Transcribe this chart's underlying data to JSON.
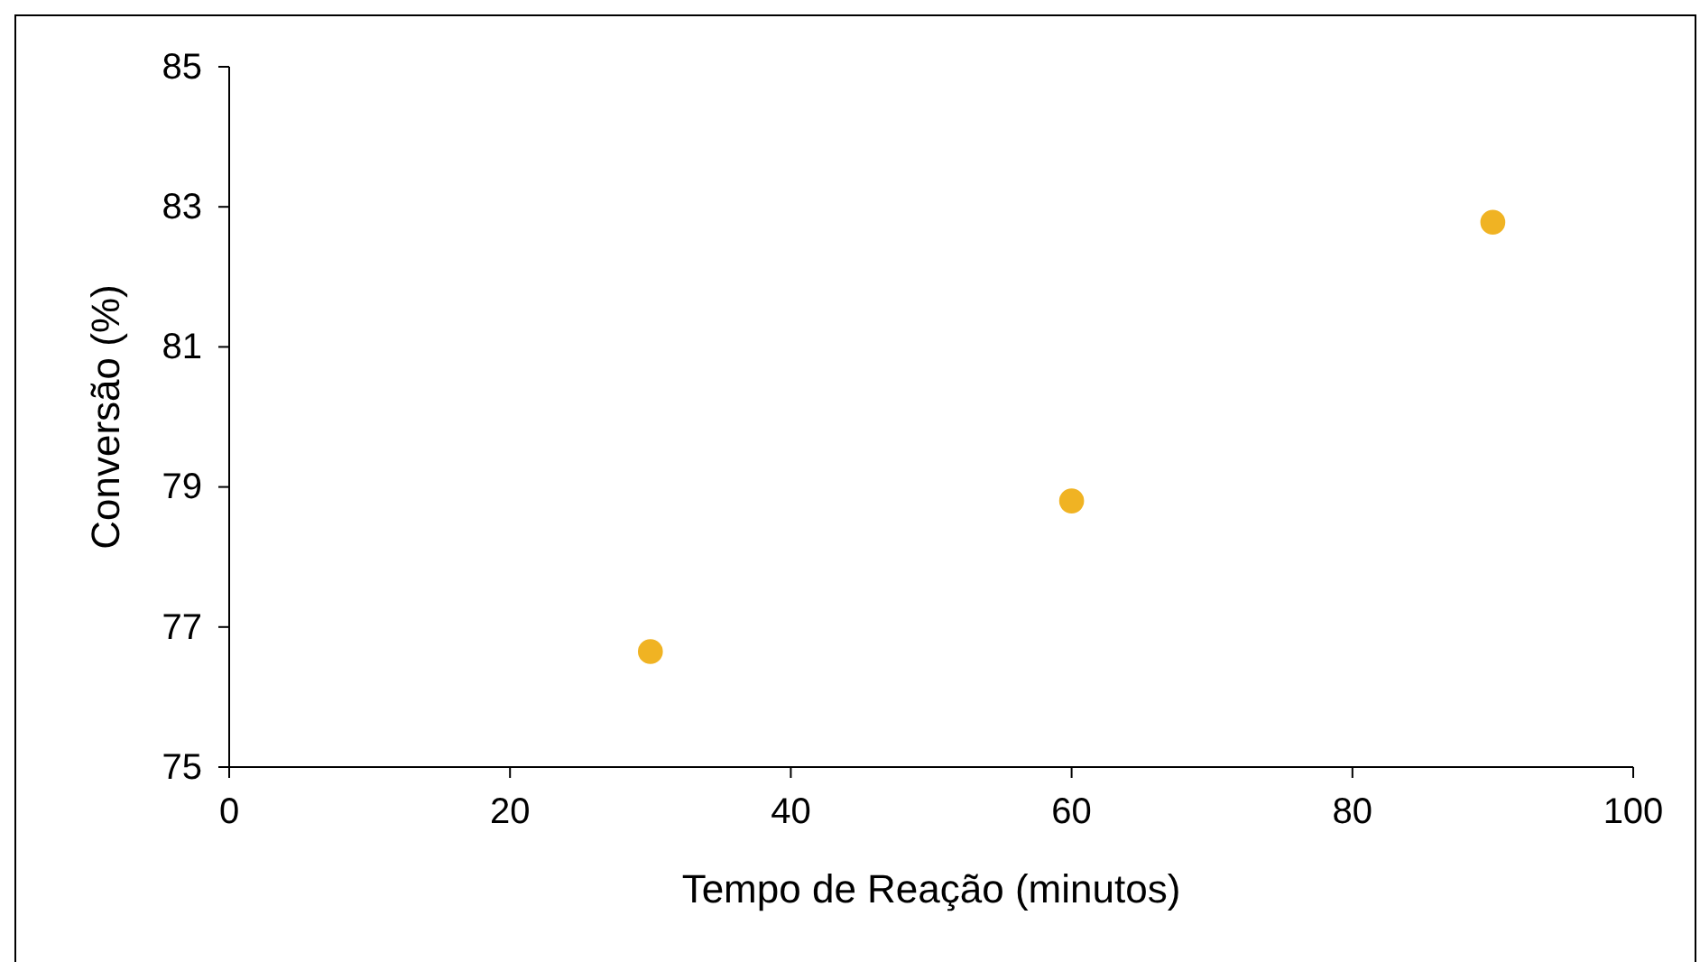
{
  "chart_data": {
    "type": "scatter",
    "xlabel": "Tempo de Reação (minutos)",
    "ylabel": "Conversão (%)",
    "x": [
      30,
      60,
      90
    ],
    "series": [
      {
        "color": "#f0b323",
        "values": [
          76.65,
          78.8,
          82.78
        ]
      }
    ],
    "xlim": [
      0,
      100
    ],
    "xticks": [
      0,
      20,
      40,
      60,
      80,
      100
    ],
    "ylim": [
      75,
      85
    ],
    "yticks": [
      75,
      77,
      79,
      81,
      83,
      85
    ],
    "marker": "circle"
  }
}
